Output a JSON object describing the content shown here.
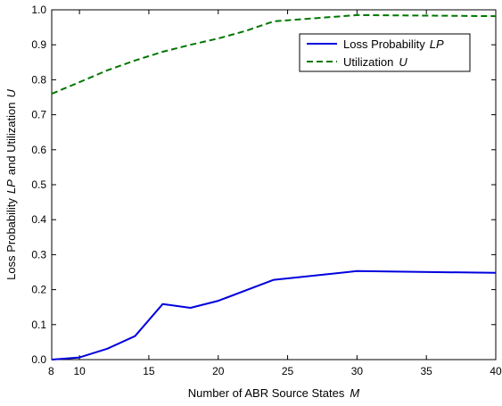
{
  "chart_data": {
    "type": "line",
    "xlabel": "Number of ABR Source States",
    "xlabel_var": "M",
    "ylabel": "Loss Probability",
    "ylabel_var1": "LP",
    "ylabel_mid": "and Utilization",
    "ylabel_var2": "U",
    "xlim": [
      8,
      40
    ],
    "ylim": [
      0,
      1.0
    ],
    "x_ticks": [
      8,
      10,
      15,
      20,
      25,
      30,
      35,
      40
    ],
    "x_tick_labels": [
      "8",
      "10",
      "15",
      "20",
      "25",
      "30",
      "35",
      "40"
    ],
    "y_ticks": [
      0,
      0.1,
      0.2,
      0.3,
      0.4,
      0.5,
      0.6,
      0.7,
      0.8,
      0.9,
      1.0
    ],
    "y_tick_labels": [
      "0.0",
      "0.1",
      "0.2",
      "0.3",
      "0.4",
      "0.5",
      "0.6",
      "0.7",
      "0.8",
      "0.9",
      "1.0"
    ],
    "grid": false,
    "legend_position": "top-right",
    "series": [
      {
        "name": "Loss Probability",
        "name_var": "LP",
        "color": "#0000dd",
        "style": "solid",
        "x": [
          8,
          10,
          12,
          14,
          16,
          18,
          20,
          24,
          30,
          40
        ],
        "y": [
          0.0,
          0.006,
          0.031,
          0.067,
          0.159,
          0.148,
          0.168,
          0.228,
          0.253,
          0.248
        ]
      },
      {
        "name": "Utilization",
        "name_var": "U",
        "color": "#007700",
        "style": "dashed",
        "x": [
          8,
          10,
          12,
          14,
          16,
          18,
          20,
          22,
          24,
          30,
          40
        ],
        "y": [
          0.76,
          0.793,
          0.827,
          0.855,
          0.88,
          0.9,
          0.918,
          0.94,
          0.967,
          0.985,
          0.982
        ]
      }
    ]
  }
}
